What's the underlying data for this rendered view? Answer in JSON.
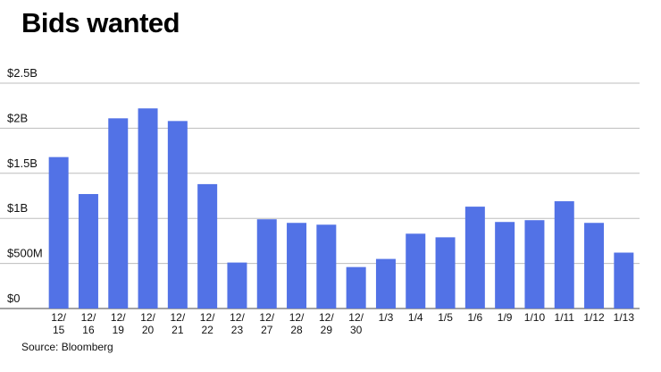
{
  "title": "Bids wanted",
  "source": "Source: Bloomberg",
  "colors": {
    "bar": "#5272e6",
    "grid": "#bdbdbd",
    "axis": "#444444"
  },
  "chart_data": {
    "type": "bar",
    "title": "Bids wanted",
    "xlabel": "",
    "ylabel": "",
    "categories": [
      [
        "12/",
        "15"
      ],
      [
        "12/",
        "16"
      ],
      [
        "12/",
        "19"
      ],
      [
        "12/",
        "20"
      ],
      [
        "12/",
        "21"
      ],
      [
        "12/",
        "22"
      ],
      [
        "12/",
        "23"
      ],
      [
        "12/",
        "27"
      ],
      [
        "12/",
        "28"
      ],
      [
        "12/",
        "29"
      ],
      [
        "12/",
        "30"
      ],
      [
        "1/3"
      ],
      [
        "1/4"
      ],
      [
        "1/5"
      ],
      [
        "1/6"
      ],
      [
        "1/9"
      ],
      [
        "1/10"
      ],
      [
        "1/11"
      ],
      [
        "1/12"
      ],
      [
        "1/13"
      ]
    ],
    "values": [
      1.68,
      1.27,
      2.11,
      2.22,
      2.08,
      1.38,
      0.51,
      0.99,
      0.95,
      0.93,
      0.46,
      0.55,
      0.83,
      0.79,
      1.13,
      0.96,
      0.98,
      1.19,
      0.95,
      0.62
    ],
    "unit": "$B",
    "ylim": [
      0,
      2.5
    ],
    "yticks": [
      {
        "value": 0,
        "label": "$0"
      },
      {
        "value": 0.5,
        "label": "$500M"
      },
      {
        "value": 1,
        "label": "$1B"
      },
      {
        "value": 1.5,
        "label": "$1.5B"
      },
      {
        "value": 2,
        "label": "$2B"
      },
      {
        "value": 2.5,
        "label": "$2.5B"
      }
    ],
    "grid": true,
    "legend": "none"
  }
}
